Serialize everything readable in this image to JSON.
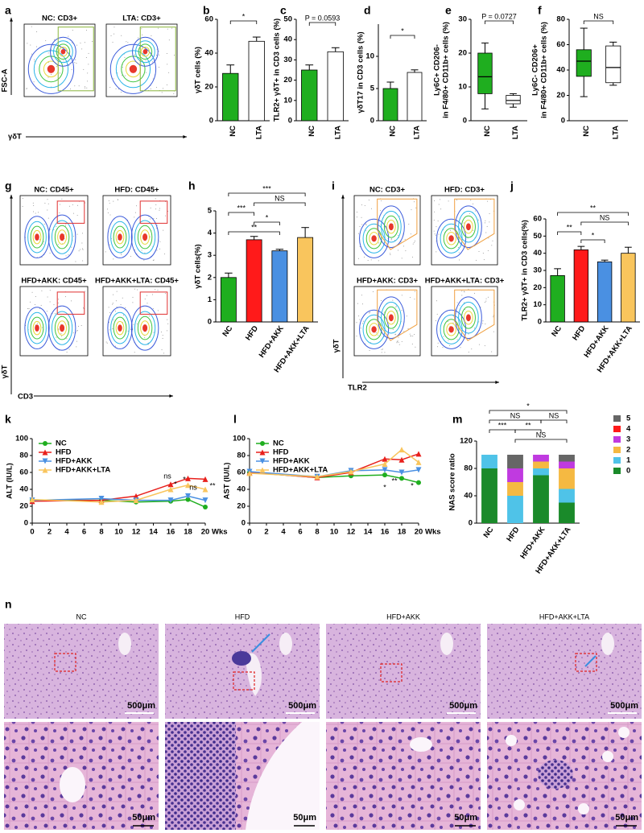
{
  "figure": {
    "flow": [
      {
        "panel": "a",
        "titles": [
          "NC: CD3+",
          "LTA: CD3+"
        ],
        "ylabel": "FSC-A",
        "xlabel": "γδT"
      },
      {
        "panel": "g",
        "titles": [
          "NC: CD45+",
          "HFD: CD45+",
          "HFD+AKK: CD45+",
          "HFD+AKK+LTA: CD45+"
        ],
        "ylabel": "γδT",
        "xlabel": "CD3"
      },
      {
        "panel": "i",
        "titles": [
          "NC: CD3+",
          "HFD: CD3+",
          "HFD+AKK: CD3+",
          "HFD+AKK+LTA: CD3+"
        ],
        "ylabel": "γδT",
        "xlabel": "TLR2"
      }
    ],
    "histology": {
      "panel": "n",
      "titles": [
        "NC",
        "HFD",
        "HFD+AKK",
        "HFD+AKK+LTA"
      ],
      "scale_low_mag": "500μm",
      "scale_high_mag": "50μm"
    }
  },
  "chart_data": [
    {
      "panel": "b",
      "type": "bar",
      "ylabel": "γδT cells (%)",
      "categories": [
        "NC",
        "LTA"
      ],
      "values": [
        28,
        47
      ],
      "errors": [
        5,
        2.5
      ],
      "colors": [
        "#1fae1f",
        "#ffffff"
      ],
      "ylim": [
        0,
        60
      ],
      "yticks": [
        0,
        20,
        40,
        60
      ],
      "annotations": [
        "*"
      ]
    },
    {
      "panel": "c",
      "type": "bar",
      "ylabel": "TLR2+ γδT+ in CD3 cells (%)",
      "categories": [
        "NC",
        "LTA"
      ],
      "values": [
        25,
        34
      ],
      "errors": [
        2.5,
        2
      ],
      "colors": [
        "#1fae1f",
        "#ffffff"
      ],
      "ylim": [
        0,
        50
      ],
      "yticks": [
        0,
        10,
        20,
        30,
        40,
        50
      ],
      "annotations": [
        "P = 0.0593"
      ]
    },
    {
      "panel": "d",
      "type": "bar",
      "ylabel": "γδT17  in CD3 cells (%)",
      "categories": [
        "NC",
        "LTA"
      ],
      "values": [
        5,
        7.5
      ],
      "errors": [
        1,
        0.4
      ],
      "colors": [
        "#1fae1f",
        "#ffffff"
      ],
      "ylim": [
        0,
        15
      ],
      "yticks": [
        0,
        5,
        10
      ],
      "annotations": [
        "*"
      ]
    },
    {
      "panel": "e",
      "type": "box",
      "ylabel": [
        "Ly6C+ CD206-",
        "in F4/80+ CD11b+ cells (%)"
      ],
      "categories": [
        "NC",
        "LTA"
      ],
      "stats": [
        [
          3.5,
          8,
          13,
          20,
          23
        ],
        [
          4,
          5,
          6,
          7.5,
          8
        ]
      ],
      "colors": [
        "#1fae1f",
        "#ffffff"
      ],
      "ylim": [
        0,
        30
      ],
      "yticks": [
        0,
        10,
        20,
        30
      ],
      "annotations": [
        "P = 0.0727"
      ]
    },
    {
      "panel": "f",
      "type": "box",
      "ylabel": [
        "Ly6C- CD206+",
        "in F4/80+ CD11b+ cells (%)"
      ],
      "categories": [
        "NC",
        "LTA"
      ],
      "stats": [
        [
          19,
          35,
          47,
          56,
          73
        ],
        [
          28,
          30,
          42,
          59,
          62
        ]
      ],
      "colors": [
        "#1fae1f",
        "#ffffff"
      ],
      "ylim": [
        0,
        80
      ],
      "yticks": [
        0,
        20,
        40,
        60,
        80
      ],
      "annotations": [
        "NS"
      ]
    },
    {
      "panel": "h",
      "type": "bar",
      "ylabel": "γδT cells(%)",
      "categories": [
        "NC",
        "HFD",
        "HFD+AKK",
        "HFD+AKK+LTA"
      ],
      "values": [
        2.0,
        3.7,
        3.2,
        3.8
      ],
      "errors": [
        0.2,
        0.15,
        0.07,
        0.45
      ],
      "colors": [
        "#1fae1f",
        "#ff1a1a",
        "#4a90e2",
        "#f9c55d"
      ],
      "ylim": [
        0,
        5
      ],
      "yticks": [
        0,
        1,
        2,
        3,
        4,
        5
      ],
      "annotations": [
        "***",
        "NS",
        "***",
        "*",
        "**"
      ]
    },
    {
      "panel": "j",
      "type": "bar",
      "ylabel": "TLR2+ γδT+ in CD3 cells(%)",
      "categories": [
        "NC",
        "HFD",
        "HFD+AKK",
        "HFD+AKK+LTA"
      ],
      "values": [
        27,
        42,
        35,
        40
      ],
      "errors": [
        4,
        2,
        1,
        3.5
      ],
      "colors": [
        "#1fae1f",
        "#ff1a1a",
        "#4a90e2",
        "#f9c55d"
      ],
      "ylim": [
        0,
        60
      ],
      "yticks": [
        0,
        10,
        20,
        30,
        40,
        50,
        60
      ],
      "annotations": [
        "**",
        "NS",
        "**",
        "*"
      ]
    },
    {
      "panel": "k",
      "type": "line",
      "ylabel": "ALT (IU/L)",
      "xlabel": "Wks",
      "x": [
        0,
        8,
        12,
        16,
        18,
        20
      ],
      "xlim": [
        0,
        20
      ],
      "xticks": [
        0,
        2,
        4,
        6,
        8,
        10,
        12,
        14,
        16,
        18,
        20
      ],
      "ylim": [
        0,
        100
      ],
      "yticks": [
        0,
        20,
        40,
        60,
        80,
        100
      ],
      "legend": "upper left",
      "series": [
        {
          "name": "NC",
          "color": "#1fae1f",
          "marker": "circle",
          "values": [
            27,
            27,
            25,
            26,
            28,
            19
          ]
        },
        {
          "name": "HFD",
          "color": "#e8201c",
          "marker": "triangle",
          "values": [
            26,
            27,
            32,
            46,
            53,
            52
          ]
        },
        {
          "name": "HFD+AKK",
          "color": "#4a90e2",
          "marker": "triangle-down",
          "values": [
            27,
            29,
            27,
            27,
            32,
            27
          ]
        },
        {
          "name": "HFD+AKK+LTA",
          "color": "#f9c55d",
          "marker": "triangle",
          "values": [
            28,
            25,
            27,
            40,
            45,
            40
          ]
        }
      ],
      "annotations": [
        "ns",
        "*",
        "*",
        "ns",
        "**"
      ]
    },
    {
      "panel": "l",
      "type": "line",
      "ylabel": "AST (IU/L)",
      "xlabel": "Wks",
      "x": [
        0,
        8,
        12,
        16,
        18,
        20
      ],
      "xlim": [
        0,
        20
      ],
      "xticks": [
        0,
        2,
        4,
        6,
        8,
        10,
        12,
        14,
        16,
        18,
        20
      ],
      "ylim": [
        0,
        100
      ],
      "yticks": [
        0,
        20,
        40,
        60,
        80,
        100
      ],
      "legend": "upper left",
      "series": [
        {
          "name": "NC",
          "color": "#1fae1f",
          "marker": "circle",
          "values": [
            60,
            54,
            56,
            57,
            53,
            48
          ]
        },
        {
          "name": "HFD",
          "color": "#e8201c",
          "marker": "triangle",
          "values": [
            60,
            54,
            60,
            76,
            75,
            82
          ]
        },
        {
          "name": "HFD+AKK",
          "color": "#4a90e2",
          "marker": "triangle-down",
          "values": [
            61,
            55,
            62,
            63,
            60,
            63
          ]
        },
        {
          "name": "HFD+AKK+LTA",
          "color": "#f9c55d",
          "marker": "triangle",
          "values": [
            59,
            55,
            61,
            70,
            87,
            72
          ]
        }
      ],
      "annotations": [
        "*",
        "**",
        "*"
      ]
    },
    {
      "panel": "m",
      "type": "stacked_bar",
      "ylabel": "NAS score ratio",
      "categories": [
        "NC",
        "HFD",
        "HFD+AKK",
        "HFD+AKK+LTA"
      ],
      "ylim": [
        0,
        120
      ],
      "yticks": [
        0,
        40,
        80,
        120
      ],
      "legend": "right",
      "series": [
        {
          "name": "0",
          "color": "#1a8a2a",
          "values": [
            80,
            0,
            70,
            30
          ]
        },
        {
          "name": "1",
          "color": "#4fc3e8",
          "values": [
            20,
            40,
            10,
            20
          ]
        },
        {
          "name": "2",
          "color": "#f5b942",
          "values": [
            0,
            20,
            10,
            30
          ]
        },
        {
          "name": "3",
          "color": "#c03ae0",
          "values": [
            0,
            20,
            10,
            10
          ]
        },
        {
          "name": "4",
          "color": "#ff1a1a",
          "values": [
            0,
            0,
            0,
            0
          ]
        },
        {
          "name": "5",
          "color": "#666666",
          "values": [
            0,
            20,
            0,
            10
          ]
        }
      ],
      "annotations": [
        "*",
        "NS",
        "NS",
        "***",
        "**",
        "NS"
      ]
    }
  ]
}
